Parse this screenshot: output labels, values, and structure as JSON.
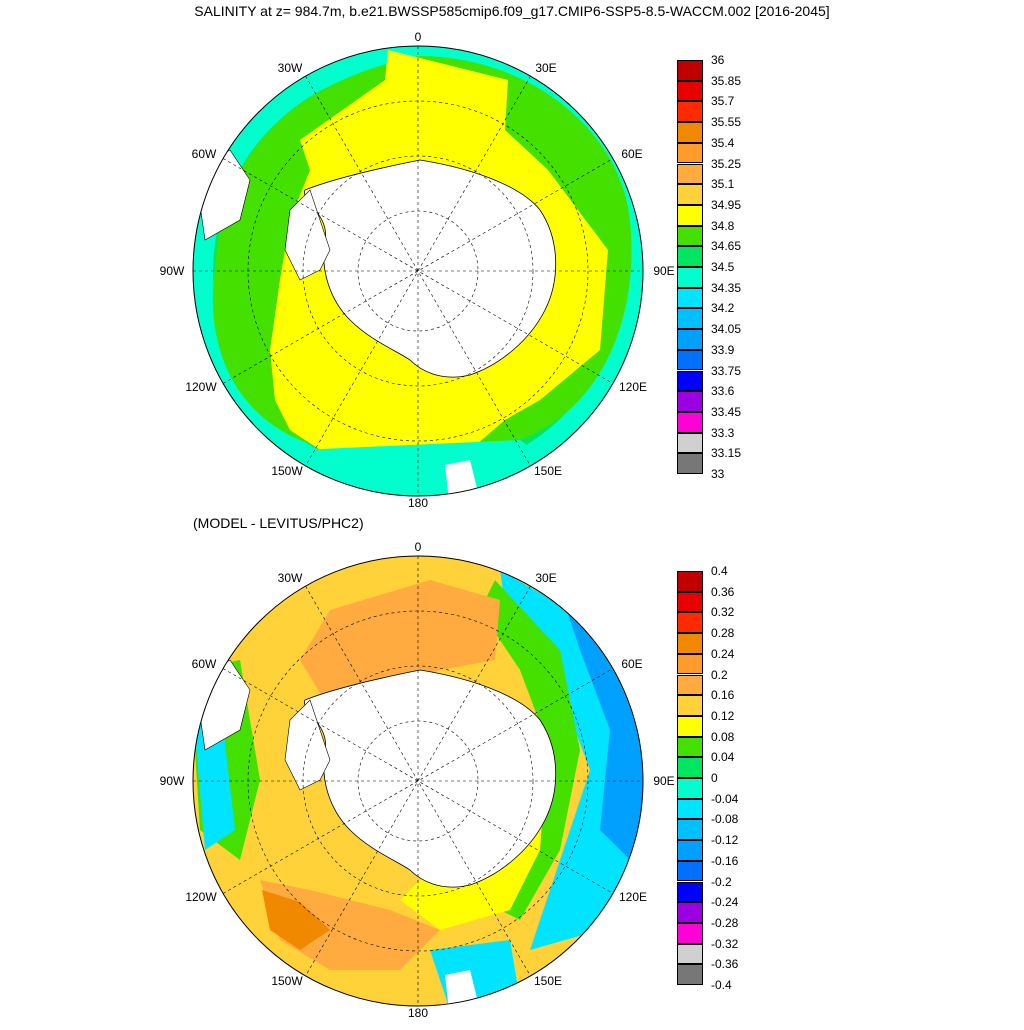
{
  "title": "SALINITY at z= 984.7m, b.e21.BWSSP585cmip6.f09_g17.CMIP6-SSP5-8.5-WACCM.002 [2016-2045]",
  "subtitle": "(MODEL - LEVITUS/PHC2)",
  "longitude_labels": {
    "top": "0",
    "e30": "30E",
    "e60": "60E",
    "e90": "90E",
    "e120": "120E",
    "e150": "150E",
    "bottom": "180",
    "w150": "150W",
    "w120": "120W",
    "w90": "90W",
    "w60": "60W",
    "w30": "30W"
  },
  "colorbar_salinity": {
    "labels": [
      "36",
      "35.85",
      "35.7",
      "35.55",
      "35.4",
      "35.25",
      "35.1",
      "34.95",
      "34.8",
      "34.65",
      "34.5",
      "34.35",
      "34.2",
      "34.05",
      "33.9",
      "33.75",
      "33.6",
      "33.45",
      "33.3",
      "33.15",
      "33"
    ],
    "colors": [
      "#c00000",
      "#e80000",
      "#ff2a00",
      "#f08800",
      "#ff9b2b",
      "#ffab40",
      "#ffd23a",
      "#ffff00",
      "#44e000",
      "#00e660",
      "#00ffcc",
      "#00e4ff",
      "#00c0ff",
      "#00a0ff",
      "#0070ff",
      "#0000ff",
      "#9a00e0",
      "#ff00d8",
      "#d0d0d0",
      "#777777"
    ]
  },
  "colorbar_difference": {
    "labels": [
      "0.4",
      "0.36",
      "0.32",
      "0.28",
      "0.24",
      "0.2",
      "0.16",
      "0.12",
      "0.08",
      "0.04",
      "0",
      "-0.04",
      "-0.08",
      "-0.12",
      "-0.16",
      "-0.2",
      "-0.24",
      "-0.28",
      "-0.32",
      "-0.36",
      "-0.4"
    ],
    "colors": [
      "#c00000",
      "#e80000",
      "#ff2a00",
      "#f08800",
      "#ff9b2b",
      "#ffab40",
      "#ffd23a",
      "#ffff00",
      "#44e000",
      "#00e660",
      "#00ffcc",
      "#00e4ff",
      "#00c0ff",
      "#00a0ff",
      "#0070ff",
      "#0000ff",
      "#9a00e0",
      "#ff00d8",
      "#d0d0d0",
      "#777777"
    ]
  },
  "colors": {
    "ocean_top_main": "#ffff00",
    "ocean_top_outer": "#44e000",
    "ocean_top_edge": "#00e660",
    "ocean_top_rim": "#00ffcc",
    "land": "#ffffff",
    "diff_main": "#ffd23a",
    "diff_high": "#ffab40",
    "diff_low": "#ffff00",
    "diff_neg": "#00e4ff"
  }
}
